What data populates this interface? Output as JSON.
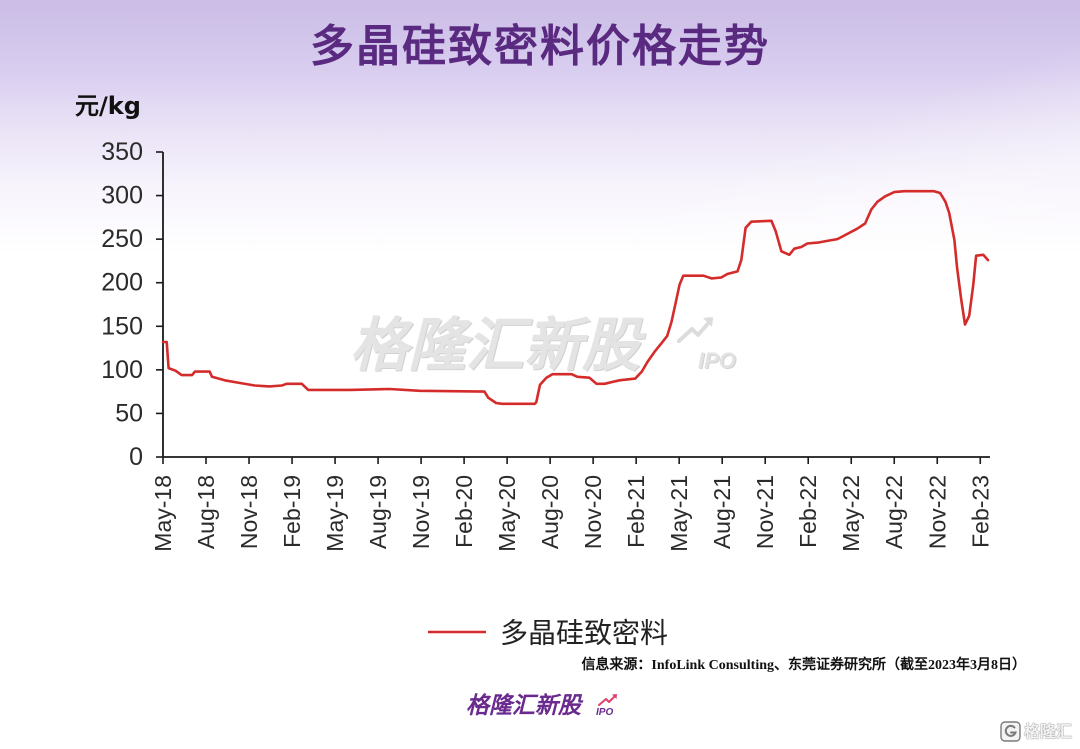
{
  "chart_data": {
    "type": "line",
    "title": "多晶硅致密料价格走势",
    "ylabel": "元/kg",
    "ylim": [
      0,
      350
    ],
    "yticks": [
      0,
      50,
      100,
      150,
      200,
      250,
      300,
      350
    ],
    "xlim": [
      "2018-05-01",
      "2023-02-20"
    ],
    "xticks": [
      "May-18",
      "Aug-18",
      "Nov-18",
      "Feb-19",
      "May-19",
      "Aug-19",
      "Nov-19",
      "Feb-20",
      "May-20",
      "Aug-20",
      "Nov-20",
      "Feb-21",
      "May-21",
      "Aug-21",
      "Nov-21",
      "Feb-22",
      "May-22",
      "Aug-22",
      "Nov-22",
      "Feb-23"
    ],
    "grid": false,
    "legend": "bottom",
    "series": [
      {
        "name": "多晶硅致密料",
        "color": "#d42b2b",
        "points": [
          [
            "2018-05-01",
            132
          ],
          [
            "2018-05-09",
            132
          ],
          [
            "2018-05-13",
            102
          ],
          [
            "2018-05-28",
            99
          ],
          [
            "2018-06-10",
            94
          ],
          [
            "2018-07-02",
            94
          ],
          [
            "2018-07-08",
            98
          ],
          [
            "2018-08-09",
            98
          ],
          [
            "2018-08-14",
            92
          ],
          [
            "2018-09-10",
            88
          ],
          [
            "2018-10-11",
            85
          ],
          [
            "2018-11-13",
            82
          ],
          [
            "2018-12-14",
            81
          ],
          [
            "2019-01-10",
            82
          ],
          [
            "2019-01-20",
            84
          ],
          [
            "2019-02-20",
            84
          ],
          [
            "2019-03-05",
            77
          ],
          [
            "2019-06-02",
            77
          ],
          [
            "2019-08-26",
            78
          ],
          [
            "2019-10-29",
            76
          ],
          [
            "2020-03-14",
            75
          ],
          [
            "2020-03-22",
            68
          ],
          [
            "2020-04-08",
            62
          ],
          [
            "2020-04-20",
            61
          ],
          [
            "2020-06-29",
            61
          ],
          [
            "2020-07-02",
            63
          ],
          [
            "2020-07-10",
            83
          ],
          [
            "2020-07-24",
            91
          ],
          [
            "2020-08-06",
            95
          ],
          [
            "2020-09-16",
            95
          ],
          [
            "2020-09-28",
            92
          ],
          [
            "2020-10-24",
            91
          ],
          [
            "2020-11-08",
            84
          ],
          [
            "2020-11-25",
            84
          ],
          [
            "2020-12-10",
            86
          ],
          [
            "2020-12-27",
            88
          ],
          [
            "2021-01-13",
            89
          ],
          [
            "2021-01-30",
            90
          ],
          [
            "2021-02-12",
            98
          ],
          [
            "2021-02-23",
            109
          ],
          [
            "2021-03-10",
            121
          ],
          [
            "2021-03-24",
            130
          ],
          [
            "2021-04-06",
            139
          ],
          [
            "2021-04-15",
            155
          ],
          [
            "2021-04-23",
            175
          ],
          [
            "2021-05-02",
            198
          ],
          [
            "2021-05-10",
            208
          ],
          [
            "2021-06-22",
            208
          ],
          [
            "2021-07-09",
            205
          ],
          [
            "2021-07-30",
            206
          ],
          [
            "2021-08-12",
            210
          ],
          [
            "2021-09-03",
            213
          ],
          [
            "2021-09-11",
            226
          ],
          [
            "2021-09-20",
            263
          ],
          [
            "2021-10-02",
            270
          ],
          [
            "2021-11-14",
            271
          ],
          [
            "2021-11-23",
            259
          ],
          [
            "2021-12-05",
            236
          ],
          [
            "2021-12-22",
            232
          ],
          [
            "2022-01-02",
            239
          ],
          [
            "2022-01-17",
            241
          ],
          [
            "2022-01-30",
            245
          ],
          [
            "2022-02-20",
            246
          ],
          [
            "2022-03-11",
            248
          ],
          [
            "2022-04-02",
            250
          ],
          [
            "2022-04-23",
            256
          ],
          [
            "2022-05-14",
            262
          ],
          [
            "2022-05-31",
            268
          ],
          [
            "2022-06-13",
            284
          ],
          [
            "2022-06-26",
            293
          ],
          [
            "2022-07-12",
            299
          ],
          [
            "2022-08-01",
            304
          ],
          [
            "2022-08-22",
            305
          ],
          [
            "2022-10-25",
            305
          ],
          [
            "2022-11-07",
            303
          ],
          [
            "2022-11-18",
            293
          ],
          [
            "2022-11-26",
            280
          ],
          [
            "2022-12-07",
            249
          ],
          [
            "2022-12-13",
            217
          ],
          [
            "2022-12-22",
            180
          ],
          [
            "2022-12-30",
            152
          ],
          [
            "2023-01-08",
            162
          ],
          [
            "2023-01-17",
            198
          ],
          [
            "2023-01-23",
            231
          ],
          [
            "2023-02-07",
            232
          ],
          [
            "2023-02-16",
            226
          ]
        ]
      }
    ]
  },
  "source": "信息来源：InfoLink Consulting、东莞证券研究所（截至2023年3月8日）",
  "watermark": {
    "text": "格隆汇新股",
    "sub": "IPO",
    "icon": "rising-arrow-icon"
  },
  "footer_logo": {
    "text": "格隆汇新股",
    "sub": "IPO",
    "icon": "rising-arrow-icon"
  },
  "corner_logo": {
    "text": "格隆汇",
    "icon": "g-logo-icon"
  },
  "colors": {
    "title": "#5a2a80",
    "line": "#d42b2b",
    "axis": "#1a1a1a",
    "logo": "#6b2a8e"
  }
}
